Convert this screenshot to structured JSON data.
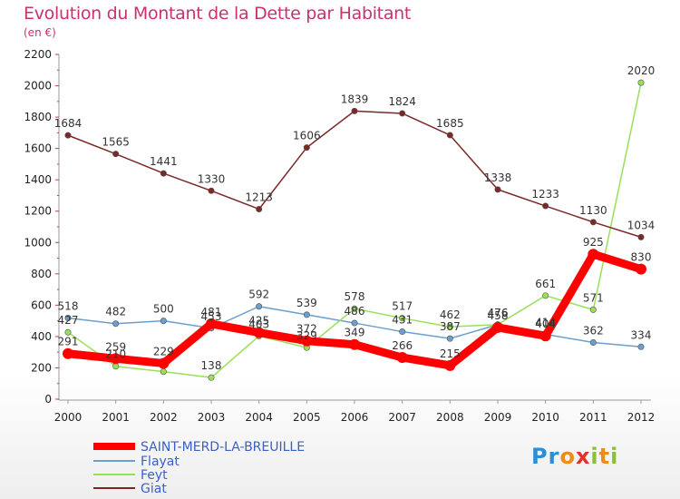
{
  "header": {
    "title": "Evolution du Montant de la Dette par Habitant",
    "subtitle": "(en €)"
  },
  "logo": {
    "text": "Proxiti",
    "letters": [
      {
        "ch": "P",
        "color": "#2b8fd6"
      },
      {
        "ch": "r",
        "color": "#2b8fd6"
      },
      {
        "ch": "o",
        "color": "#f08a1c"
      },
      {
        "ch": "x",
        "color": "#e8302a"
      },
      {
        "ch": "i",
        "color": "#8bbf3a"
      },
      {
        "ch": "t",
        "color": "#f08a1c"
      },
      {
        "ch": "i",
        "color": "#8bbf3a"
      }
    ]
  },
  "chart_data": {
    "type": "line",
    "title": "Evolution du Montant de la Dette par Habitant",
    "subtitle": "(en €)",
    "x": [
      2000,
      2001,
      2002,
      2003,
      2004,
      2005,
      2006,
      2007,
      2008,
      2009,
      2010,
      2011,
      2012
    ],
    "ylim": [
      0,
      2200
    ],
    "yticks": [
      0,
      200,
      400,
      600,
      800,
      1000,
      1200,
      1400,
      1600,
      1800,
      2000,
      2200
    ],
    "grid": false,
    "legend": "bottom-left",
    "series": [
      {
        "name": "SAINT-MERD-LA-BREUILLE",
        "color": "#ff0000",
        "emphasis": true,
        "values": [
          291,
          259,
          229,
          481,
          425,
          372,
          349,
          266,
          215,
          458,
          404,
          925,
          830
        ],
        "labels": [
          "291",
          "259",
          "229",
          "481",
          "425",
          "372",
          "349",
          "266",
          "215",
          "458",
          "404",
          "925",
          "830"
        ]
      },
      {
        "name": "Flayat",
        "color": "#6a9fce",
        "emphasis": false,
        "values": [
          518,
          482,
          500,
          453,
          592,
          539,
          486,
          431,
          387,
          476,
          414,
          362,
          334
        ],
        "labels": [
          "518",
          "482",
          "500",
          "453",
          "592",
          "539",
          "486",
          "431",
          "387",
          "476",
          "414",
          "362",
          "334"
        ]
      },
      {
        "name": "Feyt",
        "color": "#99e05a",
        "emphasis": false,
        "values": [
          427,
          210,
          176,
          138,
          403,
          329,
          578,
          517,
          462,
          476,
          661,
          571,
          2020
        ],
        "labels": [
          "427",
          "210",
          "",
          "138",
          "403",
          "329",
          "578",
          "517",
          "462",
          "476",
          "661",
          "571",
          "2020"
        ]
      },
      {
        "name": "Giat",
        "color": "#7b2828",
        "emphasis": false,
        "values": [
          1684,
          1565,
          1441,
          1330,
          1213,
          1606,
          1839,
          1824,
          1685,
          1338,
          1233,
          1130,
          1034
        ],
        "labels": [
          "1684",
          "1565",
          "1441",
          "1330",
          "1213",
          "1606",
          "1839",
          "1824",
          "1685",
          "1338",
          "1233",
          "1130",
          "1034"
        ]
      }
    ]
  }
}
